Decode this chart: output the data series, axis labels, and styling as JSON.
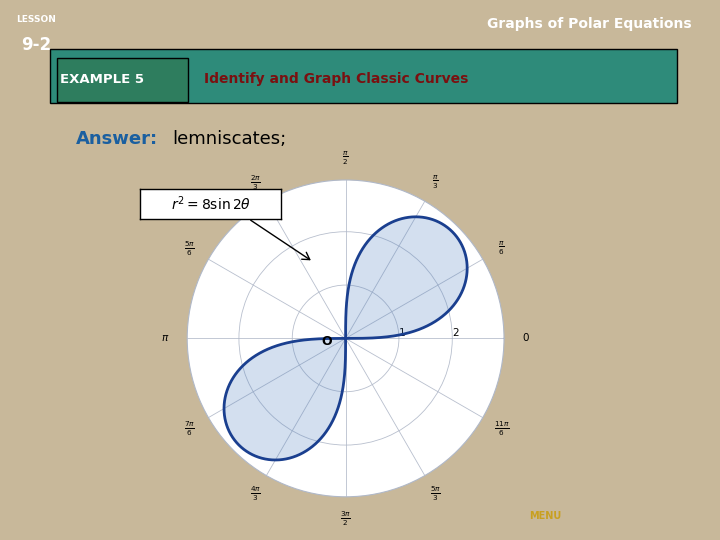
{
  "title": "Identify and Graph Classic Curves",
  "example_label": "EXAMPLE 5",
  "answer_text": "Answer:",
  "answer_value": "lemniscates;",
  "bg_color": "#ffffff",
  "slide_bg": "#c8b89a",
  "header_teal": "#2e8b7a",
  "example_green": "#2e7d5e",
  "curve_color": "#1a3f8f",
  "curve_fill": "#5080c0",
  "grid_color": "#b0b8c8",
  "title_color": "#7a1010",
  "answer_color": "#1a5fa0",
  "r_max": 4,
  "angle_labels": [
    "0",
    "\\frac{\\pi}{6}",
    "\\frac{\\pi}{3}",
    "\\frac{\\pi}{2}",
    "\\frac{2\\pi}{3}",
    "\\frac{5\\pi}{6}",
    "\\pi",
    "\\frac{7\\pi}{6}",
    "\\frac{4\\pi}{3}",
    "\\frac{3\\pi}{2}",
    "\\frac{5\\pi}{3}",
    "\\frac{11\\pi}{6}"
  ]
}
